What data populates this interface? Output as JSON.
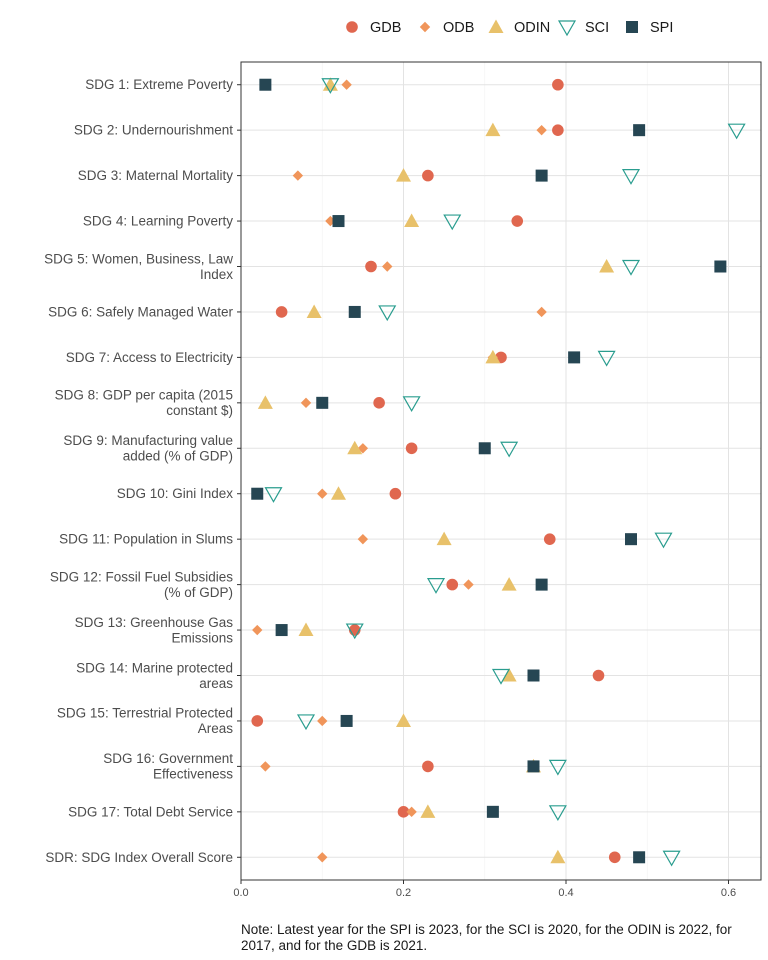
{
  "chart_data": {
    "type": "scatter",
    "title": "",
    "xlabel": "",
    "ylabel": "",
    "xlim": [
      0,
      0.64
    ],
    "x_ticks": [
      "0.0",
      "0.2",
      "0.4",
      "0.6"
    ],
    "x_tick_values": [
      0,
      0.2,
      0.4,
      0.6
    ],
    "grid": true,
    "legend_position": "top",
    "categories": [
      "SDG 1: Extreme Poverty",
      "SDG 2: Undernourishment",
      "SDG 3: Maternal Mortality",
      "SDG 4: Learning Poverty",
      "SDG 5: Women, Business, Law\nIndex",
      "SDG 6: Safely Managed Water",
      "SDG 7: Access to Electricity",
      "SDG 8: GDP per capita (2015\nconstant $)",
      "SDG 9: Manufacturing value\nadded (% of GDP)",
      "SDG 10: Gini Index",
      "SDG 11: Population in Slums",
      "SDG 12: Fossil Fuel Subsidies\n(% of GDP)",
      "SDG 13: Greenhouse Gas\nEmissions",
      "SDG 14: Marine protected\nareas",
      "SDG 15: Terrestrial Protected\nAreas",
      "SDG 16: Government\nEffectiveness",
      "SDG 17: Total Debt Service",
      "SDR: SDG Index Overall Score"
    ],
    "series": [
      {
        "name": "GDB",
        "shape": "circle",
        "color": "#e0674f",
        "values": [
          0.39,
          0.39,
          0.23,
          0.34,
          0.16,
          0.05,
          0.32,
          0.17,
          0.21,
          0.19,
          0.38,
          0.26,
          0.14,
          0.44,
          0.02,
          0.23,
          0.2,
          0.46
        ]
      },
      {
        "name": "ODB",
        "shape": "diamond",
        "color": "#f0955a",
        "values": [
          0.13,
          0.37,
          0.07,
          0.11,
          0.18,
          0.37,
          0.31,
          0.08,
          0.15,
          0.1,
          0.15,
          0.28,
          0.02,
          0.36,
          0.1,
          0.03,
          0.21,
          0.1
        ]
      },
      {
        "name": "ODIN",
        "shape": "triangle",
        "color": "#e8c16a",
        "values": [
          0.11,
          0.31,
          0.2,
          0.21,
          0.45,
          0.09,
          0.31,
          0.03,
          0.14,
          0.12,
          0.25,
          0.33,
          0.08,
          0.33,
          0.2,
          0.36,
          0.23,
          0.39
        ]
      },
      {
        "name": "SCI",
        "shape": "triangle-down-open",
        "color": "#2a9d8f",
        "values": [
          0.11,
          0.61,
          0.48,
          0.26,
          0.48,
          0.18,
          0.45,
          0.21,
          0.33,
          0.04,
          0.52,
          0.24,
          0.14,
          0.32,
          0.08,
          0.39,
          0.39,
          0.53
        ]
      },
      {
        "name": "SPI",
        "shape": "square",
        "color": "#264653",
        "values": [
          0.03,
          0.49,
          0.37,
          0.12,
          0.59,
          0.14,
          0.41,
          0.1,
          0.3,
          0.02,
          0.48,
          0.37,
          0.05,
          0.36,
          0.13,
          0.36,
          0.31,
          0.49
        ]
      }
    ]
  },
  "note": "Note: Latest year for the SPI is 2023, for the SCI is 2020, for the ODIN is 2022, for\n2017, and for the GDB is 2021."
}
